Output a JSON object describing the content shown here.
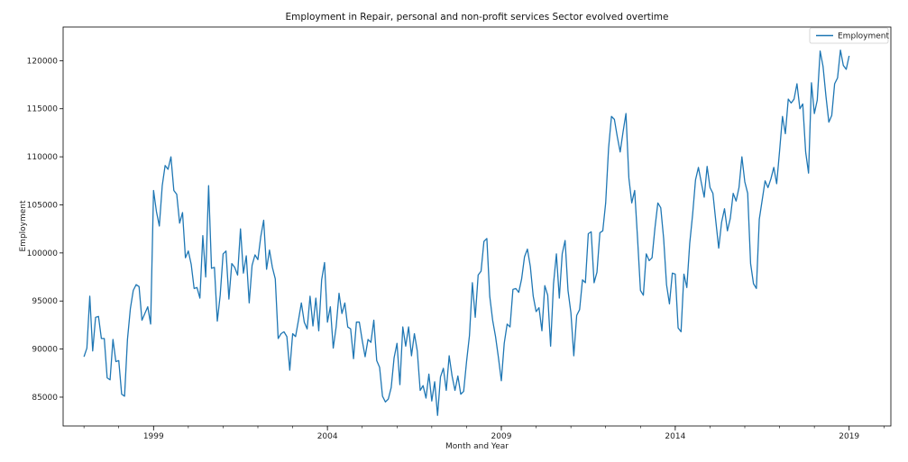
{
  "chart_data": {
    "type": "line",
    "title": "Employment in Repair, personal and non-profit services Sector evolved overtime",
    "xlabel": "Month and Year",
    "ylabel": "Employment",
    "xlim": [
      1996.4,
      2020.2
    ],
    "ylim": [
      82000,
      123500
    ],
    "x_ticks": [
      1999,
      2004,
      2009,
      2014,
      2019
    ],
    "y_ticks": [
      85000,
      90000,
      95000,
      100000,
      105000,
      110000,
      115000,
      120000
    ],
    "grid": false,
    "legend": {
      "position": "top-right",
      "entries": [
        "Employment"
      ]
    },
    "series": [
      {
        "name": "Employment",
        "color": "#1f77b4",
        "x_start": 1997.0,
        "x_step_months": 1,
        "values": [
          89200,
          90100,
          95500,
          89800,
          93300,
          93400,
          91100,
          91100,
          87000,
          86800,
          91000,
          88700,
          88800,
          85300,
          85100,
          91000,
          94200,
          96100,
          96700,
          96500,
          93000,
          93700,
          94400,
          92600,
          106500,
          104300,
          102800,
          107000,
          109100,
          108700,
          110000,
          106500,
          106100,
          103100,
          104200,
          99500,
          100200,
          98800,
          96300,
          96400,
          95300,
          101800,
          97500,
          107000,
          98400,
          98500,
          92900,
          95600,
          99900,
          100200,
          95200,
          98900,
          98500,
          97700,
          102500,
          97900,
          99700,
          94800,
          98700,
          99800,
          99300,
          101700,
          103400,
          98300,
          100300,
          98500,
          97300,
          91100,
          91600,
          91800,
          91300,
          87800,
          91600,
          91300,
          93000,
          94800,
          92800,
          92100,
          95500,
          92400,
          95300,
          91900,
          97200,
          99000,
          92800,
          94400,
          90100,
          92300,
          95800,
          93700,
          94800,
          92300,
          92100,
          89000,
          92800,
          92800,
          90900,
          89200,
          91000,
          90700,
          93000,
          88800,
          88100,
          85100,
          84500,
          84800,
          86000,
          89100,
          90600,
          86300,
          92300,
          90300,
          92300,
          89300,
          91600,
          89800,
          85700,
          86200,
          84900,
          87400,
          84600,
          86600,
          83100,
          87100,
          88000,
          85700,
          89300,
          87200,
          85700,
          87200,
          85300,
          85600,
          88700,
          91400,
          96900,
          93300,
          97700,
          98100,
          101200,
          101500,
          95500,
          93000,
          91300,
          89100,
          86700,
          90600,
          92600,
          92300,
          96200,
          96300,
          95900,
          97300,
          99600,
          100400,
          98600,
          95500,
          93900,
          94300,
          91900,
          96600,
          95600,
          90300,
          96800,
          99900,
          95300,
          99900,
          101300,
          96100,
          93800,
          89300,
          93500,
          94100,
          97200,
          96900,
          102000,
          102200,
          96900,
          98000,
          102100,
          102300,
          105200,
          110900,
          114200,
          113900,
          112100,
          110500,
          112600,
          114500,
          107800,
          105200,
          106500,
          101500,
          96100,
          95600,
          99900,
          99200,
          99500,
          102600,
          105200,
          104700,
          101500,
          96700,
          94700,
          97900,
          97800,
          92200,
          91800,
          97800,
          96400,
          101000,
          104000,
          107600,
          108900,
          107300,
          105800,
          109000,
          106800,
          106200,
          103300,
          100500,
          103200,
          104600,
          102300,
          103600,
          106200,
          105400,
          106800,
          110000,
          107400,
          106200,
          98900,
          96800,
          96300,
          103500,
          105500,
          107500,
          106800,
          107700,
          108900,
          107200,
          110600,
          114200,
          112400,
          116000,
          115600,
          116000,
          117600,
          115000,
          115500,
          110500,
          108300,
          117700,
          114500,
          115900,
          121000,
          119400,
          116300,
          113600,
          114300,
          117600,
          118200,
          121100,
          119500,
          119100,
          120500
        ]
      }
    ]
  }
}
